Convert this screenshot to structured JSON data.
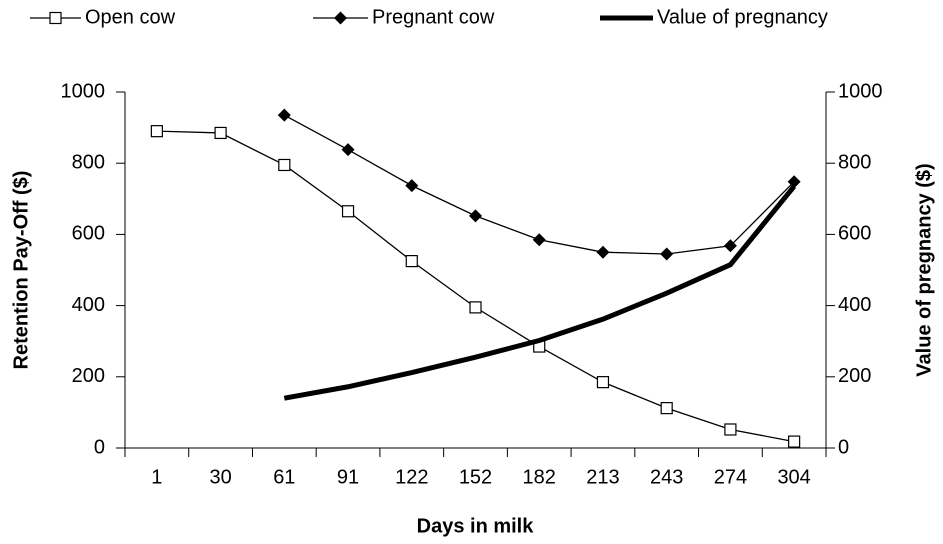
{
  "chart_data": {
    "type": "line",
    "x_label": "Days in milk",
    "y_label": "Retention Pay-Off ($)",
    "y2_label": "Value of pregnancy ($)",
    "categories": [
      "1",
      "30",
      "61",
      "91",
      "122",
      "152",
      "182",
      "213",
      "243",
      "274",
      "304"
    ],
    "series": [
      {
        "name": "Open cow",
        "color": "#000000",
        "marker": "square",
        "values": [
          890,
          885,
          795,
          665,
          525,
          395,
          285,
          185,
          112,
          52,
          18
        ]
      },
      {
        "name": "Pregnant cow",
        "color": "#000000",
        "marker": "diamond",
        "values": [
          null,
          null,
          935,
          838,
          737,
          652,
          585,
          550,
          545,
          568,
          748
        ]
      },
      {
        "name": "Value of pregnancy",
        "color": "#000000",
        "marker": "none",
        "axis": "y2",
        "values": [
          null,
          null,
          140,
          172,
          212,
          255,
          302,
          362,
          435,
          515,
          735
        ]
      }
    ],
    "ylim": [
      0,
      1000
    ],
    "yticks": [
      0,
      200,
      400,
      600,
      800,
      1000
    ],
    "y2lim": [
      0,
      1000
    ],
    "y2ticks": [
      0,
      200,
      400,
      600,
      800,
      1000
    ],
    "legend": "top",
    "grid": false
  }
}
